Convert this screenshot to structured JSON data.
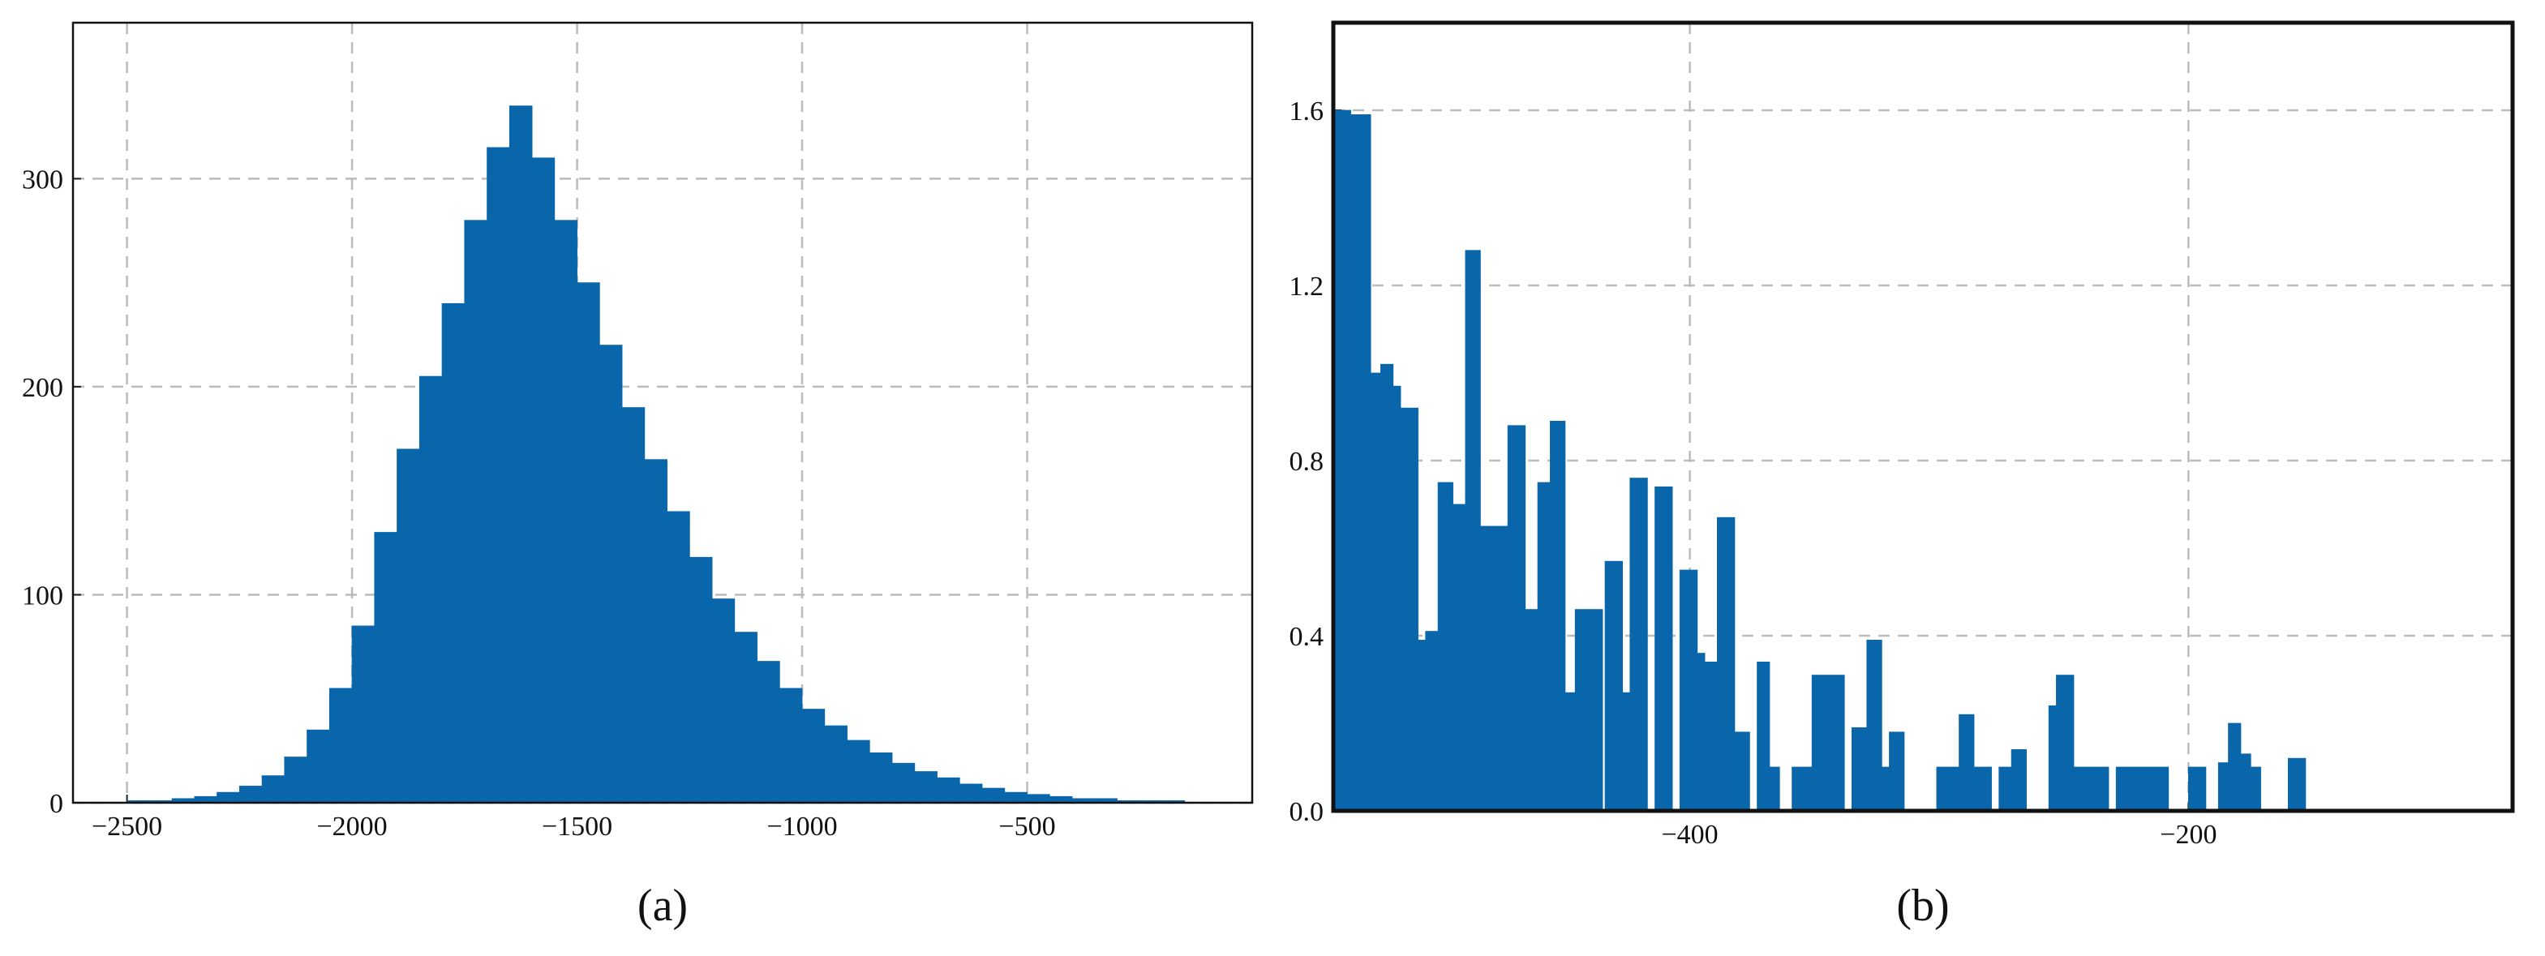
{
  "chart_data": [
    {
      "type": "histogram",
      "title": "(a)",
      "color": "#0a66ab",
      "grid": true,
      "bins": [
        -2600,
        -2550,
        -2500,
        -2450,
        -2400,
        -2350,
        -2300,
        -2250,
        -2200,
        -2150,
        -2100,
        -2050,
        -2000,
        -1950,
        -1900,
        -1850,
        -1800,
        -1750,
        -1700,
        -1650,
        -1600,
        -1550,
        -1500,
        -1450,
        -1400,
        -1350,
        -1300,
        -1250,
        -1200,
        -1150,
        -1100,
        -1050,
        -1000,
        -950,
        -900,
        -850,
        -800,
        -750,
        -700,
        -650,
        -600,
        -550,
        -500,
        -450,
        -400,
        -350,
        -300,
        -250,
        -200,
        -150
      ],
      "values": [
        0,
        0,
        1,
        1,
        2,
        3,
        5,
        8,
        13,
        22,
        35,
        55,
        85,
        130,
        170,
        205,
        240,
        280,
        315,
        335,
        310,
        280,
        250,
        220,
        190,
        165,
        140,
        118,
        98,
        82,
        68,
        55,
        45,
        37,
        30,
        24,
        19,
        15,
        12,
        9,
        7,
        5,
        4,
        3,
        2,
        2,
        1,
        1,
        1
      ],
      "xlim": [
        -2620,
        0
      ],
      "ylim": [
        0,
        375
      ],
      "xticks": [
        {
          "value": -2500,
          "label": "−2500"
        },
        {
          "value": -2000,
          "label": "−2000"
        },
        {
          "value": -1500,
          "label": "−1500"
        },
        {
          "value": -1000,
          "label": "−1000"
        },
        {
          "value": -500,
          "label": "−500"
        }
      ],
      "yticks": [
        0,
        100,
        200,
        300
      ]
    },
    {
      "type": "histogram",
      "title": "(b)",
      "color": "#0a66ab",
      "grid": true,
      "bins": [
        -543,
        -536,
        -528,
        -524,
        -519,
        -516,
        -509,
        -506,
        -501,
        -495,
        -490,
        -484,
        -473,
        -466,
        -461,
        -456,
        -450,
        -446,
        -435,
        -434,
        -427,
        -424,
        -417,
        -414,
        -407,
        -404,
        -397,
        -394,
        -389,
        -382,
        -376,
        -373,
        -368,
        -364,
        -359,
        -351,
        -338,
        -335,
        -329,
        -323,
        -320,
        -314,
        -301,
        -292,
        -286,
        -279,
        -276,
        -271,
        -265,
        -256,
        -253,
        -246,
        -240,
        -232,
        -229,
        -218,
        -208,
        -200,
        -193,
        -188,
        -184,
        -179,
        -175,
        -171,
        -160,
        -153
      ],
      "values": [
        1.6,
        1.59,
        1.0,
        1.02,
        0.97,
        0.92,
        0.39,
        0.41,
        0.75,
        0.7,
        1.28,
        0.65,
        0.88,
        0.46,
        0.75,
        0.89,
        0.27,
        0.46,
        0,
        0.57,
        0.27,
        0.76,
        0,
        0.74,
        0,
        0.55,
        0.36,
        0.34,
        0.67,
        0.18,
        0,
        0.34,
        0.1,
        0,
        0.1,
        0.31,
        0,
        0.19,
        0.39,
        0.1,
        0.18,
        0,
        0.1,
        0.22,
        0.1,
        0,
        0.1,
        0.14,
        0,
        0.24,
        0.31,
        0.1,
        0.1,
        0,
        0.1,
        0.1,
        0,
        0.1,
        0,
        0.11,
        0.2,
        0.13,
        0.1,
        0,
        0.12
      ],
      "xlim": [
        -543,
        -70
      ],
      "ylim": [
        0,
        1.8
      ],
      "xticks": [
        {
          "value": -400,
          "label": "−400"
        },
        {
          "value": -200,
          "label": "−200"
        }
      ],
      "yticks": [
        {
          "value": 0,
          "label": "0.0"
        },
        0.4,
        0.8,
        1.2,
        1.6
      ]
    }
  ]
}
